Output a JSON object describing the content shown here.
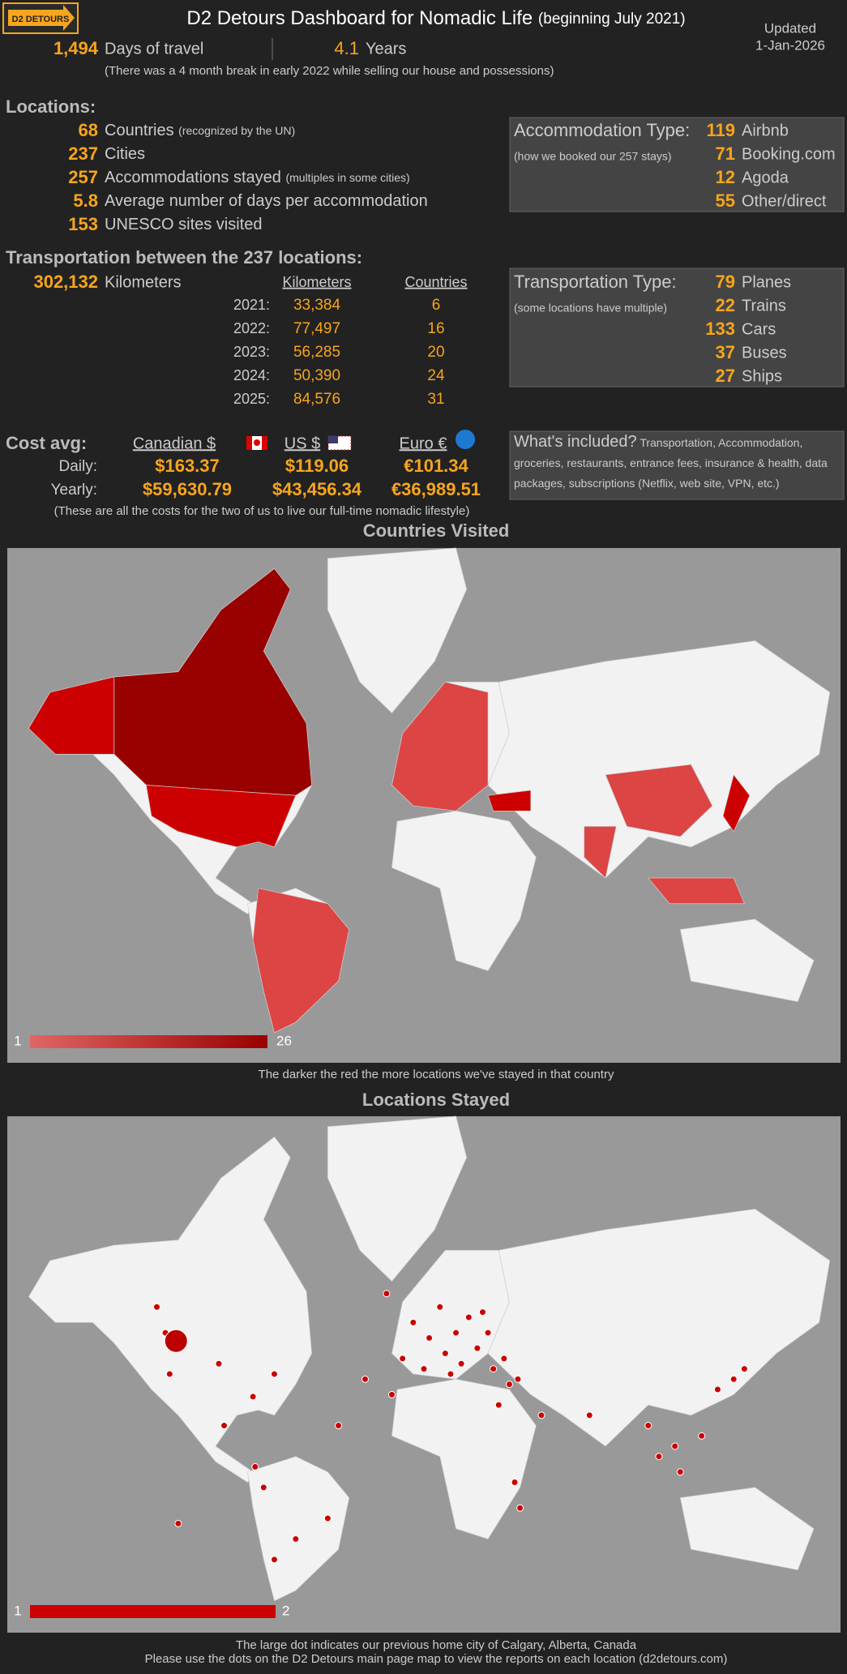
{
  "header": {
    "logo": "D2 DETOURS",
    "title": "D2 Detours Dashboard for Nomadic Life",
    "subtitle": "(beginning July 2021)",
    "updated_label": "Updated",
    "updated_date": "1-Jan-2026"
  },
  "summary": {
    "days": "1,494",
    "days_label": "Days of travel",
    "years": 4.1,
    "years_label": "Years",
    "note": "(There was a 4 month break in early 2022 while selling our house and possessions)"
  },
  "locations": {
    "heading": "Locations:",
    "items": [
      {
        "value": 68,
        "label": "Countries",
        "note": "(recognized by the UN)"
      },
      {
        "value": 237,
        "label": "Cities"
      },
      {
        "value": 257,
        "label": "Accommodations stayed",
        "note": "(multiples in some cities)"
      },
      {
        "value": 5.8,
        "label": "Average number of days per accommodation"
      },
      {
        "value": 153,
        "label": "UNESCO sites visited"
      }
    ]
  },
  "accommodation": {
    "title": "Accommodation Type:",
    "note": "(how we booked our 257 stays)",
    "items": [
      {
        "value": 119,
        "label": "Airbnb"
      },
      {
        "value": 71,
        "label": "Booking.com"
      },
      {
        "value": 12,
        "label": "Agoda"
      },
      {
        "value": 55,
        "label": "Other/direct"
      }
    ]
  },
  "transportation": {
    "heading": "Transportation between the 237 locations:",
    "total": "302,132",
    "total_label": "Kilometers",
    "columns": [
      "Kilometers",
      "Countries"
    ],
    "rows": [
      {
        "year": "2021:",
        "km": "33,384",
        "countries": 6
      },
      {
        "year": "2022:",
        "km": "77,497",
        "countries": 16
      },
      {
        "year": "2023:",
        "km": "56,285",
        "countries": 20
      },
      {
        "year": "2024:",
        "km": "50,390",
        "countries": 24
      },
      {
        "year": "2025:",
        "km": "84,576",
        "countries": 31
      }
    ]
  },
  "transport_type": {
    "title": "Transportation Type:",
    "note": "(some locations have multiple)",
    "items": [
      {
        "value": 79,
        "label": "Planes"
      },
      {
        "value": 22,
        "label": "Trains"
      },
      {
        "value": 133,
        "label": "Cars"
      },
      {
        "value": 37,
        "label": "Buses"
      },
      {
        "value": 27,
        "label": "Ships"
      }
    ]
  },
  "cost": {
    "heading": "Cost avg:",
    "currencies": [
      "Canadian $",
      "US $",
      "Euro €"
    ],
    "rows": [
      {
        "label": "Daily:",
        "values": [
          "$163.37",
          "$119.06",
          "€101.34"
        ]
      },
      {
        "label": "Yearly:",
        "values": [
          "$59,630.79",
          "$43,456.34",
          "€36,989.51"
        ]
      }
    ],
    "note": "(These are all the costs for the two of us to live our full-time nomadic lifestyle)"
  },
  "included": {
    "title": "What's included?",
    "text": "Transportation, Accommodation, groceries, restaurants, entrance fees, insurance & health, data packages, subscriptions (Netflix, web site, VPN, etc.)"
  },
  "maps": {
    "countries": {
      "title": "Countries Visited",
      "legend_min": 1,
      "legend_max": 26,
      "caption": "The darker the red the more locations we've stayed in that country"
    },
    "stays": {
      "title": "Locations Stayed",
      "legend_min": 1,
      "legend_max": 2,
      "caption": [
        "The large dot indicates our previous home city of Calgary, Alberta, Canada",
        "Please use the dots on the D2 Detours main page map to view the reports on each location (d2detours.com)"
      ]
    }
  }
}
